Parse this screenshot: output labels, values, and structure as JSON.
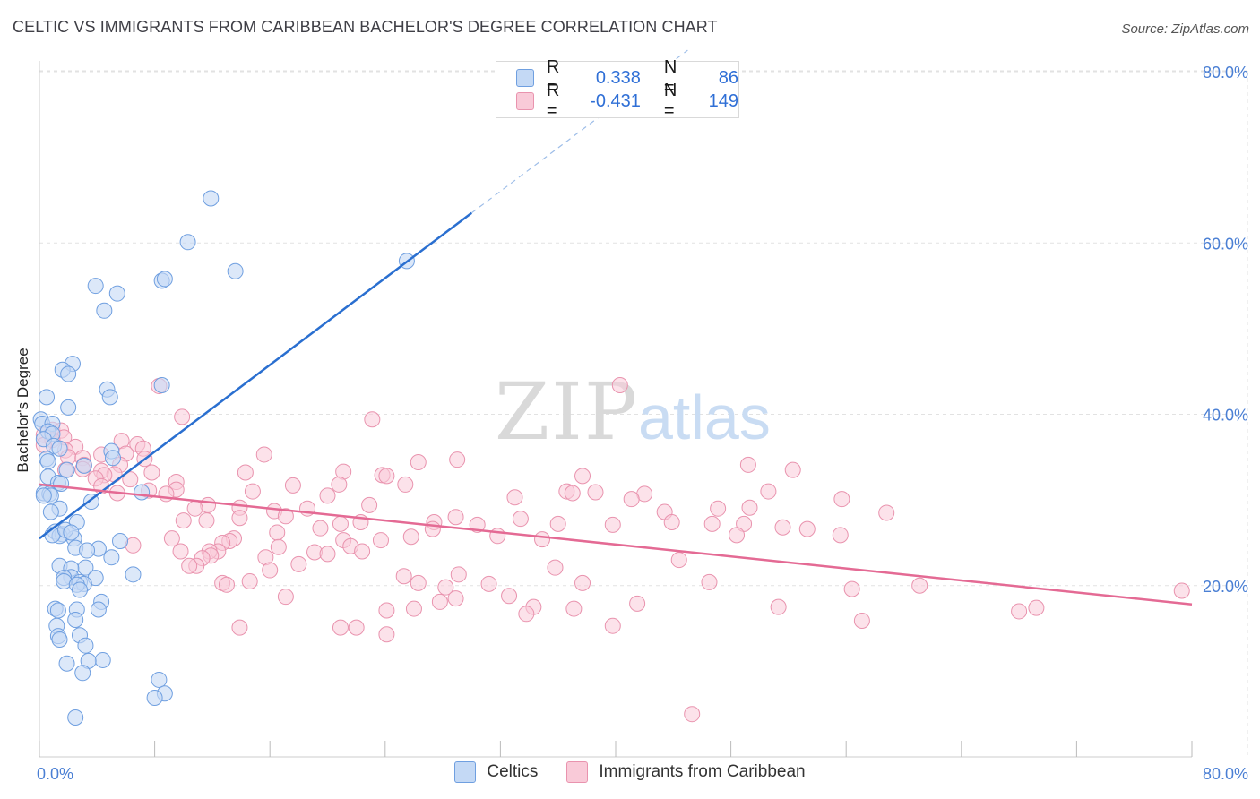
{
  "title": "CELTIC VS IMMIGRANTS FROM CARIBBEAN BACHELOR'S DEGREE CORRELATION CHART",
  "source": "Source: ZipAtlas.com",
  "watermark": {
    "zip": "ZIP",
    "atlas": "atlas"
  },
  "legend": {
    "rows": [
      {
        "r_label": "R =",
        "r_value": "0.338",
        "n_label": "N =",
        "n_value": "86"
      },
      {
        "r_label": "R =",
        "r_value": "-0.431",
        "n_label": "N =",
        "n_value": "149"
      }
    ]
  },
  "bottom_legend": [
    "Celtics",
    "Immigrants from Caribbean"
  ],
  "colors": {
    "blue_fill": "#c4d9f5",
    "blue_stroke": "#6f9fe0",
    "blue_line": "#2a6fd0",
    "pink_fill": "#f9cad8",
    "pink_stroke": "#e993ae",
    "pink_line": "#e46a94",
    "tick_color": "#4a7fd4",
    "grid": "#e2e2e2"
  },
  "chart_data": {
    "type": "scatter",
    "title": "CELTIC VS IMMIGRANTS FROM CARIBBEAN BACHELOR'S DEGREE CORRELATION CHART",
    "xlabel": "",
    "ylabel": "Bachelor's Degree",
    "xlim": [
      0,
      80
    ],
    "ylim": [
      0,
      80
    ],
    "x_tick_labels": [
      "0.0%",
      "80.0%"
    ],
    "y_tick_labels": [
      {
        "value": 20,
        "label": "20.0%"
      },
      {
        "value": 40,
        "label": "40.0%"
      },
      {
        "value": 60,
        "label": "60.0%"
      },
      {
        "value": 80,
        "label": "80.0%"
      }
    ],
    "series": [
      {
        "name": "Celtics",
        "r": 0.338,
        "n": 86,
        "trend": {
          "x0": 0,
          "y0": 25.5,
          "x1": 30,
          "y1": 63.5,
          "dashed_to_x": 45,
          "dashed_to_y": 82.5
        },
        "points": [
          [
            11.9,
            65.2
          ],
          [
            10.3,
            60.1
          ],
          [
            13.6,
            56.7
          ],
          [
            25.5,
            57.9
          ],
          [
            3.9,
            55.0
          ],
          [
            8.5,
            55.6
          ],
          [
            8.7,
            55.8
          ],
          [
            5.4,
            54.1
          ],
          [
            4.5,
            52.1
          ],
          [
            2.3,
            45.9
          ],
          [
            1.6,
            45.2
          ],
          [
            2.0,
            44.7
          ],
          [
            8.5,
            43.4
          ],
          [
            4.7,
            42.9
          ],
          [
            4.9,
            42.0
          ],
          [
            0.5,
            42.0
          ],
          [
            2.0,
            40.8
          ],
          [
            0.1,
            39.4
          ],
          [
            0.2,
            38.9
          ],
          [
            0.9,
            38.9
          ],
          [
            0.6,
            38.0
          ],
          [
            0.9,
            37.7
          ],
          [
            0.3,
            37.1
          ],
          [
            1.0,
            36.3
          ],
          [
            1.4,
            36.0
          ],
          [
            5.0,
            35.7
          ],
          [
            0.5,
            34.8
          ],
          [
            5.1,
            34.9
          ],
          [
            0.6,
            34.5
          ],
          [
            3.1,
            34.0
          ],
          [
            1.9,
            33.5
          ],
          [
            0.6,
            32.7
          ],
          [
            1.3,
            32.0
          ],
          [
            1.5,
            31.9
          ],
          [
            0.3,
            30.8
          ],
          [
            0.7,
            30.7
          ],
          [
            7.1,
            30.9
          ],
          [
            0.8,
            30.5
          ],
          [
            3.6,
            29.8
          ],
          [
            1.4,
            29.0
          ],
          [
            0.8,
            28.6
          ],
          [
            2.6,
            27.4
          ],
          [
            1.1,
            26.3
          ],
          [
            1.6,
            26.0
          ],
          [
            1.4,
            25.8
          ],
          [
            0.9,
            25.9
          ],
          [
            5.6,
            25.2
          ],
          [
            2.4,
            25.5
          ],
          [
            2.5,
            24.4
          ],
          [
            4.1,
            24.3
          ],
          [
            3.3,
            24.1
          ],
          [
            5.0,
            23.3
          ],
          [
            1.4,
            22.3
          ],
          [
            3.2,
            22.1
          ],
          [
            2.2,
            22.0
          ],
          [
            6.5,
            21.3
          ],
          [
            3.9,
            20.9
          ],
          [
            2.2,
            21.0
          ],
          [
            1.7,
            20.9
          ],
          [
            1.7,
            20.5
          ],
          [
            2.8,
            20.4
          ],
          [
            3.1,
            20.2
          ],
          [
            2.6,
            20.1
          ],
          [
            2.8,
            19.5
          ],
          [
            4.3,
            18.1
          ],
          [
            4.1,
            17.2
          ],
          [
            1.1,
            17.3
          ],
          [
            1.3,
            17.1
          ],
          [
            2.6,
            17.2
          ],
          [
            2.5,
            16.0
          ],
          [
            1.2,
            15.3
          ],
          [
            2.8,
            14.2
          ],
          [
            1.3,
            14.1
          ],
          [
            1.4,
            13.7
          ],
          [
            3.2,
            13.0
          ],
          [
            4.4,
            11.3
          ],
          [
            3.4,
            11.2
          ],
          [
            1.9,
            10.9
          ],
          [
            3.0,
            9.8
          ],
          [
            8.3,
            9.0
          ],
          [
            8.7,
            7.4
          ],
          [
            8.0,
            6.9
          ],
          [
            2.5,
            4.6
          ],
          [
            0.3,
            30.5
          ],
          [
            1.8,
            26.5
          ],
          [
            2.2,
            26.2
          ]
        ]
      },
      {
        "name": "Immigrants from Caribbean",
        "r": -0.431,
        "n": 149,
        "trend": {
          "x0": 0,
          "y0": 31.8,
          "x1": 80,
          "y1": 17.8
        },
        "points": [
          [
            8.3,
            43.3
          ],
          [
            40.3,
            43.4
          ],
          [
            9.9,
            39.7
          ],
          [
            23.1,
            39.4
          ],
          [
            0.9,
            38.2
          ],
          [
            1.5,
            38.1
          ],
          [
            0.3,
            37.6
          ],
          [
            1.7,
            37.3
          ],
          [
            0.9,
            37.0
          ],
          [
            5.7,
            36.9
          ],
          [
            0.3,
            36.4
          ],
          [
            6.8,
            36.5
          ],
          [
            2.5,
            36.2
          ],
          [
            7.2,
            36.0
          ],
          [
            1.8,
            35.8
          ],
          [
            15.6,
            35.3
          ],
          [
            6.0,
            35.4
          ],
          [
            4.3,
            35.3
          ],
          [
            2.0,
            35.0
          ],
          [
            3.0,
            34.9
          ],
          [
            7.3,
            34.8
          ],
          [
            29.0,
            34.7
          ],
          [
            3.1,
            34.1
          ],
          [
            26.3,
            34.4
          ],
          [
            5.6,
            34.1
          ],
          [
            1.8,
            33.5
          ],
          [
            3.0,
            33.6
          ],
          [
            4.3,
            33.4
          ],
          [
            7.8,
            33.2
          ],
          [
            5.2,
            33.0
          ],
          [
            14.3,
            33.2
          ],
          [
            21.1,
            33.3
          ],
          [
            23.8,
            32.9
          ],
          [
            24.1,
            32.8
          ],
          [
            37.7,
            32.8
          ],
          [
            49.2,
            34.1
          ],
          [
            52.3,
            33.5
          ],
          [
            4.5,
            32.9
          ],
          [
            3.9,
            32.5
          ],
          [
            6.3,
            32.4
          ],
          [
            9.5,
            32.1
          ],
          [
            17.6,
            31.7
          ],
          [
            20.8,
            31.8
          ],
          [
            25.4,
            31.8
          ],
          [
            4.3,
            31.6
          ],
          [
            9.5,
            31.2
          ],
          [
            7.6,
            31.1
          ],
          [
            14.8,
            31.0
          ],
          [
            36.6,
            31.0
          ],
          [
            37.0,
            30.8
          ],
          [
            38.6,
            30.9
          ],
          [
            42.0,
            30.7
          ],
          [
            50.6,
            31.0
          ],
          [
            8.8,
            30.7
          ],
          [
            5.4,
            30.8
          ],
          [
            20.0,
            30.5
          ],
          [
            33.0,
            30.3
          ],
          [
            41.1,
            30.1
          ],
          [
            55.7,
            30.1
          ],
          [
            11.7,
            29.4
          ],
          [
            22.9,
            29.4
          ],
          [
            10.8,
            29.0
          ],
          [
            13.9,
            29.1
          ],
          [
            18.6,
            29.0
          ],
          [
            47.1,
            29.0
          ],
          [
            49.3,
            29.1
          ],
          [
            16.3,
            28.7
          ],
          [
            43.4,
            28.6
          ],
          [
            58.8,
            28.5
          ],
          [
            17.1,
            28.1
          ],
          [
            28.9,
            28.0
          ],
          [
            13.9,
            27.9
          ],
          [
            30.4,
            27.1
          ],
          [
            10.0,
            27.6
          ],
          [
            11.6,
            27.6
          ],
          [
            20.9,
            27.2
          ],
          [
            22.3,
            27.4
          ],
          [
            27.4,
            27.4
          ],
          [
            33.4,
            27.8
          ],
          [
            43.9,
            27.4
          ],
          [
            46.7,
            27.2
          ],
          [
            48.9,
            27.2
          ],
          [
            36.0,
            27.2
          ],
          [
            39.8,
            27.1
          ],
          [
            51.6,
            26.8
          ],
          [
            53.3,
            26.6
          ],
          [
            27.3,
            26.6
          ],
          [
            19.5,
            26.7
          ],
          [
            16.5,
            26.2
          ],
          [
            25.8,
            25.7
          ],
          [
            31.8,
            25.8
          ],
          [
            34.9,
            25.4
          ],
          [
            48.4,
            25.9
          ],
          [
            55.6,
            25.9
          ],
          [
            9.2,
            25.5
          ],
          [
            13.5,
            25.5
          ],
          [
            13.2,
            25.2
          ],
          [
            12.7,
            25.0
          ],
          [
            23.7,
            25.3
          ],
          [
            21.1,
            25.3
          ],
          [
            21.6,
            24.6
          ],
          [
            16.6,
            24.5
          ],
          [
            6.5,
            24.7
          ],
          [
            9.8,
            24.0
          ],
          [
            12.4,
            24.0
          ],
          [
            19.1,
            23.9
          ],
          [
            20.0,
            23.7
          ],
          [
            15.7,
            23.3
          ],
          [
            22.4,
            24.0
          ],
          [
            11.8,
            24.0
          ],
          [
            11.9,
            23.5
          ],
          [
            44.4,
            23.0
          ],
          [
            11.3,
            23.2
          ],
          [
            18.0,
            22.5
          ],
          [
            10.9,
            22.3
          ],
          [
            10.4,
            22.3
          ],
          [
            16.0,
            21.8
          ],
          [
            35.8,
            22.1
          ],
          [
            29.1,
            21.3
          ],
          [
            25.3,
            21.1
          ],
          [
            14.6,
            20.5
          ],
          [
            26.3,
            20.3
          ],
          [
            37.7,
            20.3
          ],
          [
            31.2,
            20.2
          ],
          [
            12.7,
            20.3
          ],
          [
            13.0,
            20.1
          ],
          [
            46.5,
            20.4
          ],
          [
            61.1,
            20.0
          ],
          [
            56.4,
            19.6
          ],
          [
            28.2,
            19.8
          ],
          [
            32.6,
            18.8
          ],
          [
            28.9,
            18.5
          ],
          [
            79.3,
            19.4
          ],
          [
            41.5,
            17.9
          ],
          [
            17.1,
            18.7
          ],
          [
            27.8,
            18.1
          ],
          [
            34.3,
            17.5
          ],
          [
            51.3,
            17.5
          ],
          [
            69.2,
            17.4
          ],
          [
            26.0,
            17.3
          ],
          [
            68.0,
            17.0
          ],
          [
            37.1,
            17.3
          ],
          [
            24.1,
            17.1
          ],
          [
            33.8,
            16.7
          ],
          [
            57.1,
            15.9
          ],
          [
            39.8,
            15.3
          ],
          [
            13.9,
            15.1
          ],
          [
            22.0,
            15.1
          ],
          [
            20.9,
            15.1
          ],
          [
            24.1,
            14.3
          ],
          [
            45.3,
            5.0
          ]
        ]
      }
    ]
  }
}
